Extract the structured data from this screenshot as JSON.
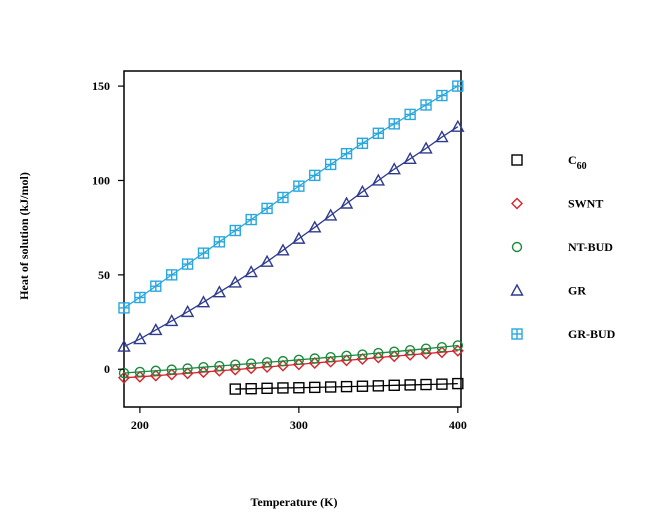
{
  "chart_data": {
    "type": "scatter",
    "xlabel": "Temperature (K)",
    "ylabel": "Heat of solution (kJ/mol)",
    "xlim": [
      190,
      402
    ],
    "ylim": [
      -20,
      158
    ],
    "xticks": [
      200,
      300,
      400
    ],
    "yticks": [
      0,
      50,
      100,
      150
    ],
    "grid": false,
    "legend_position": "right",
    "series": [
      {
        "name": "C",
        "name_sub": "60",
        "marker": "square",
        "color": "#000000",
        "x": [
          260,
          270,
          280,
          290,
          300,
          310,
          320,
          330,
          340,
          350,
          360,
          370,
          380,
          390,
          400
        ],
        "y": [
          -10.5,
          -10.3,
          -10.1,
          -9.9,
          -9.8,
          -9.6,
          -9.4,
          -9.2,
          -9.0,
          -8.8,
          -8.5,
          -8.3,
          -8.1,
          -7.9,
          -7.6
        ]
      },
      {
        "name": "SWNT",
        "marker": "diamond",
        "color": "#d6242b",
        "x": [
          190,
          200,
          210,
          220,
          230,
          240,
          250,
          260,
          270,
          280,
          290,
          300,
          310,
          320,
          330,
          340,
          350,
          360,
          370,
          380,
          390,
          400
        ],
        "y": [
          -4.5,
          -4.0,
          -3.4,
          -2.8,
          -2.2,
          -1.5,
          -0.8,
          -0.2,
          0.5,
          1.2,
          1.9,
          2.6,
          3.3,
          4.0,
          4.7,
          5.4,
          6.2,
          6.9,
          7.6,
          8.3,
          9.0,
          9.8
        ]
      },
      {
        "name": "NT-BUD",
        "marker": "circle",
        "color": "#1a8a3c",
        "x": [
          190,
          200,
          210,
          220,
          230,
          240,
          250,
          260,
          270,
          280,
          290,
          300,
          310,
          320,
          330,
          340,
          350,
          360,
          370,
          380,
          390,
          400
        ],
        "y": [
          -2.0,
          -1.4,
          -0.8,
          -0.2,
          0.4,
          1.1,
          1.7,
          2.4,
          3.0,
          3.7,
          4.3,
          5.0,
          5.7,
          6.4,
          7.1,
          7.8,
          8.6,
          9.3,
          10.1,
          10.9,
          11.7,
          12.6
        ]
      },
      {
        "name": "GR",
        "marker": "triangle",
        "color": "#2e3b8e",
        "x": [
          190,
          200,
          210,
          220,
          230,
          240,
          250,
          260,
          270,
          280,
          290,
          300,
          310,
          320,
          330,
          340,
          350,
          360,
          370,
          380,
          390,
          400
        ],
        "y": [
          12.0,
          16.0,
          20.8,
          25.6,
          30.4,
          35.5,
          40.8,
          46.0,
          51.5,
          57.0,
          63.0,
          69.2,
          75.2,
          81.5,
          87.8,
          94.0,
          100.0,
          106.0,
          111.5,
          117.0,
          123.0,
          128.5
        ]
      },
      {
        "name": "GR-BUD",
        "marker": "square-plus",
        "color": "#29a8df",
        "x": [
          190,
          200,
          210,
          220,
          230,
          240,
          250,
          260,
          270,
          280,
          290,
          300,
          310,
          320,
          330,
          340,
          350,
          360,
          370,
          380,
          390,
          400
        ],
        "y": [
          32.5,
          38.0,
          44.0,
          50.0,
          55.7,
          61.5,
          67.5,
          73.5,
          79.3,
          85.2,
          91.0,
          97.0,
          102.7,
          108.5,
          114.2,
          119.7,
          125.0,
          130.0,
          135.0,
          140.0,
          145.0,
          150.0
        ]
      }
    ]
  }
}
